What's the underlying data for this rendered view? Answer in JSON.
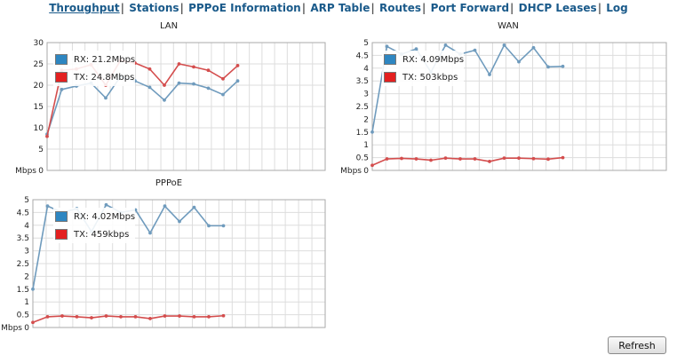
{
  "nav": {
    "items": [
      "Throughput",
      "Stations",
      "PPPoE Information",
      "ARP Table",
      "Routes",
      "Port Forward",
      "DHCP Leases",
      "Log"
    ],
    "active": "Throughput",
    "separator": "|"
  },
  "colors": {
    "rx": "#2e86c1",
    "tx": "#e32020",
    "rx_line": "#6f9bbd",
    "tx_line": "#d44d4d",
    "grid": "#dddddd"
  },
  "refresh_label": "Refresh",
  "chart_data": [
    {
      "title": "LAN",
      "type": "line",
      "ylabel": "Mbps",
      "ylim": [
        0,
        30
      ],
      "yticks": [
        "0",
        "5",
        "10",
        "15",
        "20",
        "25",
        "30"
      ],
      "grid": true,
      "legend": "top-left",
      "x": [
        0,
        1,
        2,
        3,
        4,
        5,
        6,
        7,
        8,
        9,
        10,
        11,
        12,
        13
      ],
      "series": [
        {
          "name": "RX: 21.2Mbps",
          "color": "#6f9bbd",
          "values": [
            8.5,
            19,
            19.8,
            20.5,
            17,
            22,
            21,
            19.5,
            16.5,
            20.5,
            20.3,
            19.3,
            17.8,
            21
          ]
        },
        {
          "name": "TX: 24.8Mbps",
          "color": "#d44d4d",
          "values": [
            8,
            23.5,
            23.8,
            24.8,
            20,
            25.8,
            25.2,
            23.8,
            20,
            25,
            24.3,
            23.5,
            21.5,
            24.6
          ]
        }
      ]
    },
    {
      "title": "WAN",
      "type": "line",
      "ylabel": "Mbps",
      "ylim": [
        0,
        5
      ],
      "yticks": [
        "0",
        "0.5",
        "1",
        "1.5",
        "2",
        "2.5",
        "3",
        "3.5",
        "4",
        "4.5",
        "5"
      ],
      "grid": true,
      "legend": "top-left",
      "x": [
        0,
        1,
        2,
        3,
        4,
        5,
        6,
        7,
        8,
        9,
        10,
        11,
        12,
        13
      ],
      "series": [
        {
          "name": "RX: 4.09Mbps",
          "color": "#6f9bbd",
          "values": [
            1.5,
            4.85,
            4.55,
            4.75,
            3.85,
            4.9,
            4.55,
            4.7,
            3.75,
            4.9,
            4.25,
            4.8,
            4.05,
            4.07
          ]
        },
        {
          "name": "TX: 503kbps",
          "color": "#d44d4d",
          "values": [
            0.2,
            0.45,
            0.47,
            0.45,
            0.4,
            0.48,
            0.45,
            0.45,
            0.35,
            0.48,
            0.48,
            0.46,
            0.44,
            0.5
          ]
        }
      ]
    },
    {
      "title": "PPPoE",
      "type": "line",
      "ylabel": "Mbps",
      "ylim": [
        0,
        5
      ],
      "yticks": [
        "0",
        "0.5",
        "1",
        "1.5",
        "2",
        "2.5",
        "3",
        "3.5",
        "4",
        "4.5",
        "5"
      ],
      "grid": true,
      "legend": "top-left",
      "x": [
        0,
        1,
        2,
        3,
        4,
        5,
        6,
        7,
        8,
        9,
        10,
        11,
        12,
        13
      ],
      "series": [
        {
          "name": "RX: 4.02Mbps",
          "color": "#6f9bbd",
          "values": [
            1.5,
            4.75,
            4.5,
            4.65,
            3.75,
            4.8,
            4.5,
            4.6,
            3.7,
            4.75,
            4.15,
            4.7,
            3.98,
            3.98
          ]
        },
        {
          "name": "TX: 459kbps",
          "color": "#d44d4d",
          "values": [
            0.2,
            0.42,
            0.45,
            0.42,
            0.38,
            0.45,
            0.42,
            0.42,
            0.35,
            0.45,
            0.45,
            0.42,
            0.42,
            0.46
          ]
        }
      ]
    }
  ]
}
